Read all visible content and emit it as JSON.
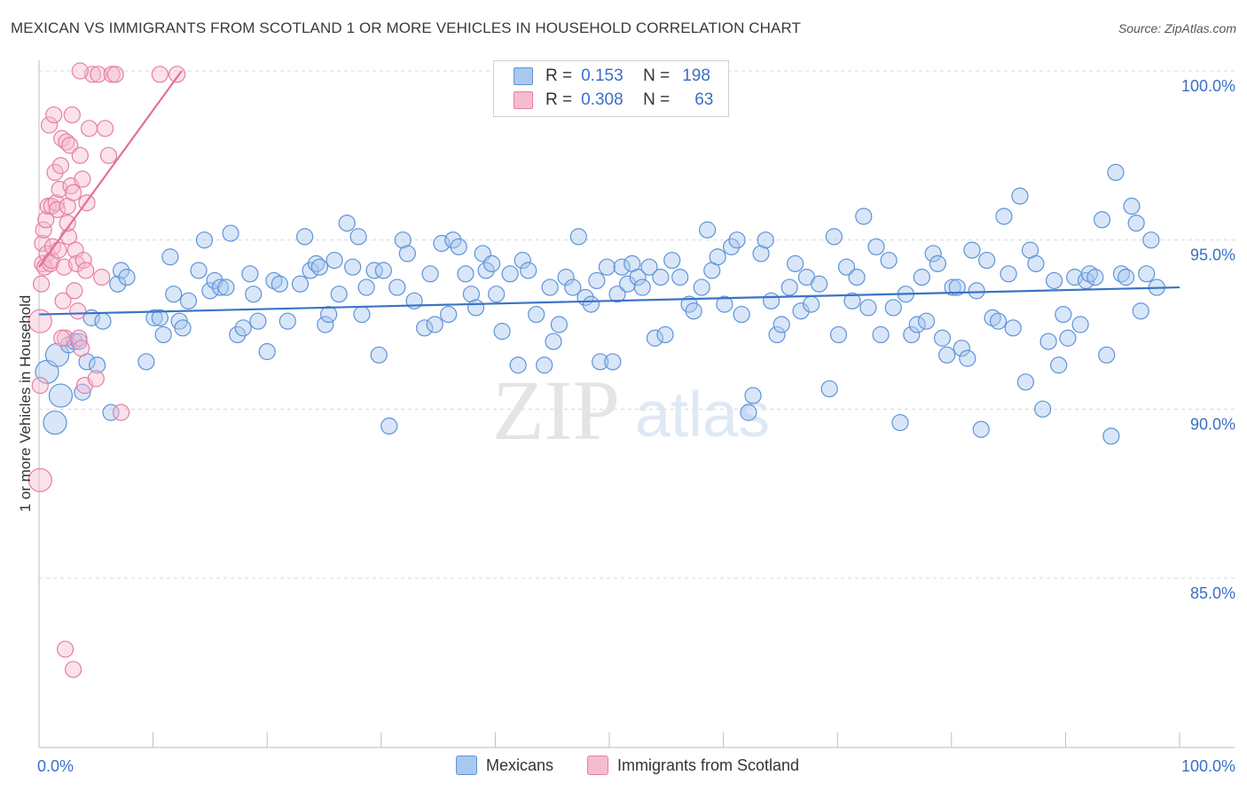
{
  "header": {
    "title": "MEXICAN VS IMMIGRANTS FROM SCOTLAND 1 OR MORE VEHICLES IN HOUSEHOLD CORRELATION CHART",
    "source": "Source: ZipAtlas.com"
  },
  "watermark": {
    "part1": "ZIP",
    "part2": "atlas"
  },
  "colors": {
    "blue_fill": "#a9c8f0",
    "blue_stroke": "#5e93d8",
    "blue_line": "#3a73c6",
    "pink_fill": "#f5bcd0",
    "pink_stroke": "#e87ea3",
    "pink_line": "#e36f98",
    "axis_text_blue": "#3a6fc6",
    "grid": "#d8d8d8"
  },
  "legend": {
    "r_label": "R =",
    "n_label": "N =",
    "rows": [
      {
        "r": "0.153",
        "n": "198"
      },
      {
        "r": "0.308",
        "n": "63"
      }
    ]
  },
  "chart_data": {
    "type": "scatter",
    "ylabel": "1 or more Vehicles in Household",
    "x_tick_labels": [
      "0.0%",
      "100.0%"
    ],
    "y_tick_labels": [
      "100.0%",
      "95.0%",
      "90.0%",
      "85.0%"
    ],
    "xlim": [
      0,
      100
    ],
    "ylim": [
      80.0,
      100.5
    ],
    "grid": "horizontal dashed",
    "series": [
      {
        "name": "Mexicans",
        "r": 0.153,
        "n": 198,
        "trend": {
          "x": [
            0,
            100
          ],
          "y": [
            92.8,
            93.6
          ]
        },
        "points": [
          [
            0.7,
            91.1
          ],
          [
            1.4,
            89.6
          ],
          [
            1.6,
            91.6
          ],
          [
            1.9,
            90.4
          ],
          [
            2.6,
            91.9
          ],
          [
            3.1,
            92.0
          ],
          [
            3.5,
            92.0
          ],
          [
            3.8,
            90.5
          ],
          [
            4.2,
            91.4
          ],
          [
            4.6,
            92.7
          ],
          [
            5.1,
            91.3
          ],
          [
            5.6,
            92.6
          ],
          [
            6.3,
            89.9
          ],
          [
            6.9,
            93.7
          ],
          [
            7.2,
            94.1
          ],
          [
            7.7,
            93.9
          ],
          [
            9.4,
            91.4
          ],
          [
            10.1,
            92.7
          ],
          [
            10.6,
            92.7
          ],
          [
            10.9,
            92.2
          ],
          [
            11.5,
            94.5
          ],
          [
            11.8,
            93.4
          ],
          [
            12.3,
            92.6
          ],
          [
            12.6,
            92.4
          ],
          [
            13.1,
            93.2
          ],
          [
            14.0,
            94.1
          ],
          [
            14.5,
            95.0
          ],
          [
            15.0,
            93.5
          ],
          [
            15.4,
            93.8
          ],
          [
            15.9,
            93.6
          ],
          [
            16.4,
            93.6
          ],
          [
            16.8,
            95.2
          ],
          [
            17.4,
            92.2
          ],
          [
            17.9,
            92.4
          ],
          [
            18.5,
            94.0
          ],
          [
            18.8,
            93.4
          ],
          [
            19.2,
            92.6
          ],
          [
            20.0,
            91.7
          ],
          [
            20.6,
            93.8
          ],
          [
            21.1,
            93.7
          ],
          [
            21.8,
            92.6
          ],
          [
            22.9,
            93.7
          ],
          [
            23.3,
            95.1
          ],
          [
            23.8,
            94.1
          ],
          [
            24.3,
            94.3
          ],
          [
            24.6,
            94.2
          ],
          [
            25.1,
            92.5
          ],
          [
            25.4,
            92.8
          ],
          [
            25.9,
            94.4
          ],
          [
            26.3,
            93.4
          ],
          [
            27.0,
            95.5
          ],
          [
            27.5,
            94.2
          ],
          [
            28.0,
            95.1
          ],
          [
            28.3,
            92.8
          ],
          [
            28.7,
            93.6
          ],
          [
            29.4,
            94.1
          ],
          [
            29.8,
            91.6
          ],
          [
            30.2,
            94.1
          ],
          [
            30.7,
            89.5
          ],
          [
            31.4,
            93.6
          ],
          [
            31.9,
            95.0
          ],
          [
            32.3,
            94.6
          ],
          [
            32.9,
            93.2
          ],
          [
            33.8,
            92.4
          ],
          [
            34.3,
            94.0
          ],
          [
            34.7,
            92.5
          ],
          [
            35.3,
            94.9
          ],
          [
            35.9,
            92.8
          ],
          [
            36.3,
            95.0
          ],
          [
            36.8,
            94.8
          ],
          [
            37.4,
            94.0
          ],
          [
            37.9,
            93.4
          ],
          [
            38.3,
            93.0
          ],
          [
            38.9,
            94.6
          ],
          [
            39.2,
            94.1
          ],
          [
            39.7,
            94.3
          ],
          [
            40.1,
            93.4
          ],
          [
            40.6,
            92.3
          ],
          [
            41.3,
            94.0
          ],
          [
            42.0,
            91.3
          ],
          [
            42.4,
            94.4
          ],
          [
            42.9,
            94.1
          ],
          [
            43.6,
            92.8
          ],
          [
            44.3,
            91.3
          ],
          [
            44.8,
            93.6
          ],
          [
            45.1,
            92.0
          ],
          [
            45.6,
            92.5
          ],
          [
            46.2,
            93.9
          ],
          [
            46.8,
            93.6
          ],
          [
            47.3,
            95.1
          ],
          [
            47.9,
            93.3
          ],
          [
            48.4,
            93.1
          ],
          [
            48.9,
            93.8
          ],
          [
            49.2,
            91.4
          ],
          [
            49.8,
            94.2
          ],
          [
            50.3,
            91.4
          ],
          [
            50.7,
            93.4
          ],
          [
            51.1,
            94.2
          ],
          [
            51.6,
            93.7
          ],
          [
            52.0,
            94.3
          ],
          [
            52.5,
            93.9
          ],
          [
            52.9,
            93.6
          ],
          [
            53.5,
            94.2
          ],
          [
            54.0,
            92.1
          ],
          [
            54.5,
            93.9
          ],
          [
            54.9,
            92.2
          ],
          [
            55.5,
            94.4
          ],
          [
            56.2,
            93.9
          ],
          [
            57.0,
            93.1
          ],
          [
            57.4,
            92.9
          ],
          [
            58.1,
            93.6
          ],
          [
            58.6,
            95.3
          ],
          [
            59.0,
            94.1
          ],
          [
            59.5,
            94.5
          ],
          [
            60.1,
            93.1
          ],
          [
            60.7,
            94.8
          ],
          [
            61.2,
            95.0
          ],
          [
            61.6,
            92.8
          ],
          [
            62.2,
            89.9
          ],
          [
            62.6,
            90.4
          ],
          [
            63.3,
            94.6
          ],
          [
            63.7,
            95.0
          ],
          [
            64.2,
            93.2
          ],
          [
            64.7,
            92.2
          ],
          [
            65.1,
            92.5
          ],
          [
            65.8,
            93.6
          ],
          [
            66.3,
            94.3
          ],
          [
            66.8,
            92.9
          ],
          [
            67.3,
            93.9
          ],
          [
            67.7,
            93.1
          ],
          [
            68.4,
            93.7
          ],
          [
            69.3,
            90.6
          ],
          [
            69.7,
            95.1
          ],
          [
            70.1,
            92.2
          ],
          [
            70.8,
            94.2
          ],
          [
            71.3,
            93.2
          ],
          [
            71.7,
            93.9
          ],
          [
            72.3,
            95.7
          ],
          [
            72.7,
            93.0
          ],
          [
            73.4,
            94.8
          ],
          [
            73.8,
            92.2
          ],
          [
            74.5,
            94.4
          ],
          [
            74.9,
            93.0
          ],
          [
            75.5,
            89.6
          ],
          [
            76.0,
            93.4
          ],
          [
            76.5,
            92.2
          ],
          [
            77.0,
            92.5
          ],
          [
            77.4,
            93.9
          ],
          [
            77.8,
            92.6
          ],
          [
            78.4,
            94.6
          ],
          [
            78.8,
            94.3
          ],
          [
            79.2,
            92.1
          ],
          [
            79.6,
            91.6
          ],
          [
            80.1,
            93.6
          ],
          [
            80.5,
            93.6
          ],
          [
            80.9,
            91.8
          ],
          [
            81.4,
            91.5
          ],
          [
            81.8,
            94.7
          ],
          [
            82.2,
            93.5
          ],
          [
            82.6,
            89.4
          ],
          [
            83.1,
            94.4
          ],
          [
            83.6,
            92.7
          ],
          [
            84.1,
            92.6
          ],
          [
            84.6,
            95.7
          ],
          [
            85.0,
            94.0
          ],
          [
            85.4,
            92.4
          ],
          [
            86.0,
            96.3
          ],
          [
            86.5,
            90.8
          ],
          [
            86.9,
            94.7
          ],
          [
            87.4,
            94.3
          ],
          [
            88.0,
            90.0
          ],
          [
            88.5,
            92.0
          ],
          [
            89.0,
            93.8
          ],
          [
            89.4,
            91.3
          ],
          [
            89.8,
            92.8
          ],
          [
            90.2,
            92.1
          ],
          [
            90.8,
            93.9
          ],
          [
            91.3,
            92.5
          ],
          [
            91.8,
            93.8
          ],
          [
            92.1,
            94.0
          ],
          [
            92.6,
            93.9
          ],
          [
            93.2,
            95.6
          ],
          [
            93.6,
            91.6
          ],
          [
            94.0,
            89.2
          ],
          [
            94.4,
            97.0
          ],
          [
            94.9,
            94.0
          ],
          [
            95.3,
            93.9
          ],
          [
            95.8,
            96.0
          ],
          [
            96.2,
            95.5
          ],
          [
            96.6,
            92.9
          ],
          [
            97.1,
            94.0
          ],
          [
            97.5,
            95.0
          ],
          [
            98.0,
            93.6
          ]
        ]
      },
      {
        "name": "Immigrants from Scotland",
        "r": 0.308,
        "n": 63,
        "trend": {
          "x": [
            0,
            12.5
          ],
          "y": [
            94.2,
            100.0
          ]
        },
        "points": [
          [
            0.1,
            87.9
          ],
          [
            0.1,
            92.6
          ],
          [
            0.1,
            90.7
          ],
          [
            0.2,
            93.7
          ],
          [
            0.3,
            94.3
          ],
          [
            0.3,
            94.9
          ],
          [
            0.4,
            95.3
          ],
          [
            0.5,
            94.2
          ],
          [
            0.6,
            95.6
          ],
          [
            0.7,
            94.6
          ],
          [
            0.8,
            96.0
          ],
          [
            0.9,
            98.4
          ],
          [
            1.0,
            94.3
          ],
          [
            1.1,
            96.0
          ],
          [
            1.1,
            94.4
          ],
          [
            1.2,
            94.8
          ],
          [
            1.3,
            98.7
          ],
          [
            1.4,
            97.0
          ],
          [
            1.5,
            96.1
          ],
          [
            1.6,
            95.9
          ],
          [
            1.7,
            94.7
          ],
          [
            1.8,
            96.5
          ],
          [
            1.9,
            97.2
          ],
          [
            2.0,
            98.0
          ],
          [
            2.1,
            93.2
          ],
          [
            2.2,
            94.2
          ],
          [
            2.3,
            92.1
          ],
          [
            2.4,
            97.9
          ],
          [
            2.5,
            96.0
          ],
          [
            2.6,
            95.1
          ],
          [
            2.7,
            97.8
          ],
          [
            2.8,
            96.6
          ],
          [
            2.9,
            98.7
          ],
          [
            3.0,
            96.4
          ],
          [
            3.1,
            93.5
          ],
          [
            3.2,
            94.7
          ],
          [
            3.3,
            94.3
          ],
          [
            3.4,
            92.9
          ],
          [
            3.5,
            92.1
          ],
          [
            3.6,
            97.5
          ],
          [
            3.7,
            91.8
          ],
          [
            3.8,
            96.8
          ],
          [
            3.9,
            94.4
          ],
          [
            4.0,
            90.7
          ],
          [
            4.1,
            94.1
          ],
          [
            4.2,
            96.1
          ],
          [
            4.4,
            98.3
          ],
          [
            4.7,
            99.9
          ],
          [
            5.0,
            90.9
          ],
          [
            5.2,
            99.9
          ],
          [
            5.5,
            93.9
          ],
          [
            5.8,
            98.3
          ],
          [
            6.1,
            97.5
          ],
          [
            6.4,
            99.9
          ],
          [
            6.7,
            99.9
          ],
          [
            2.0,
            92.1
          ],
          [
            2.3,
            82.9
          ],
          [
            3.0,
            82.3
          ],
          [
            2.5,
            95.5
          ],
          [
            10.6,
            99.9
          ],
          [
            12.1,
            99.9
          ],
          [
            7.2,
            89.9
          ],
          [
            3.6,
            100.0
          ]
        ]
      }
    ]
  },
  "bottom_legend": {
    "items": [
      "Mexicans",
      "Immigrants from Scotland"
    ]
  }
}
